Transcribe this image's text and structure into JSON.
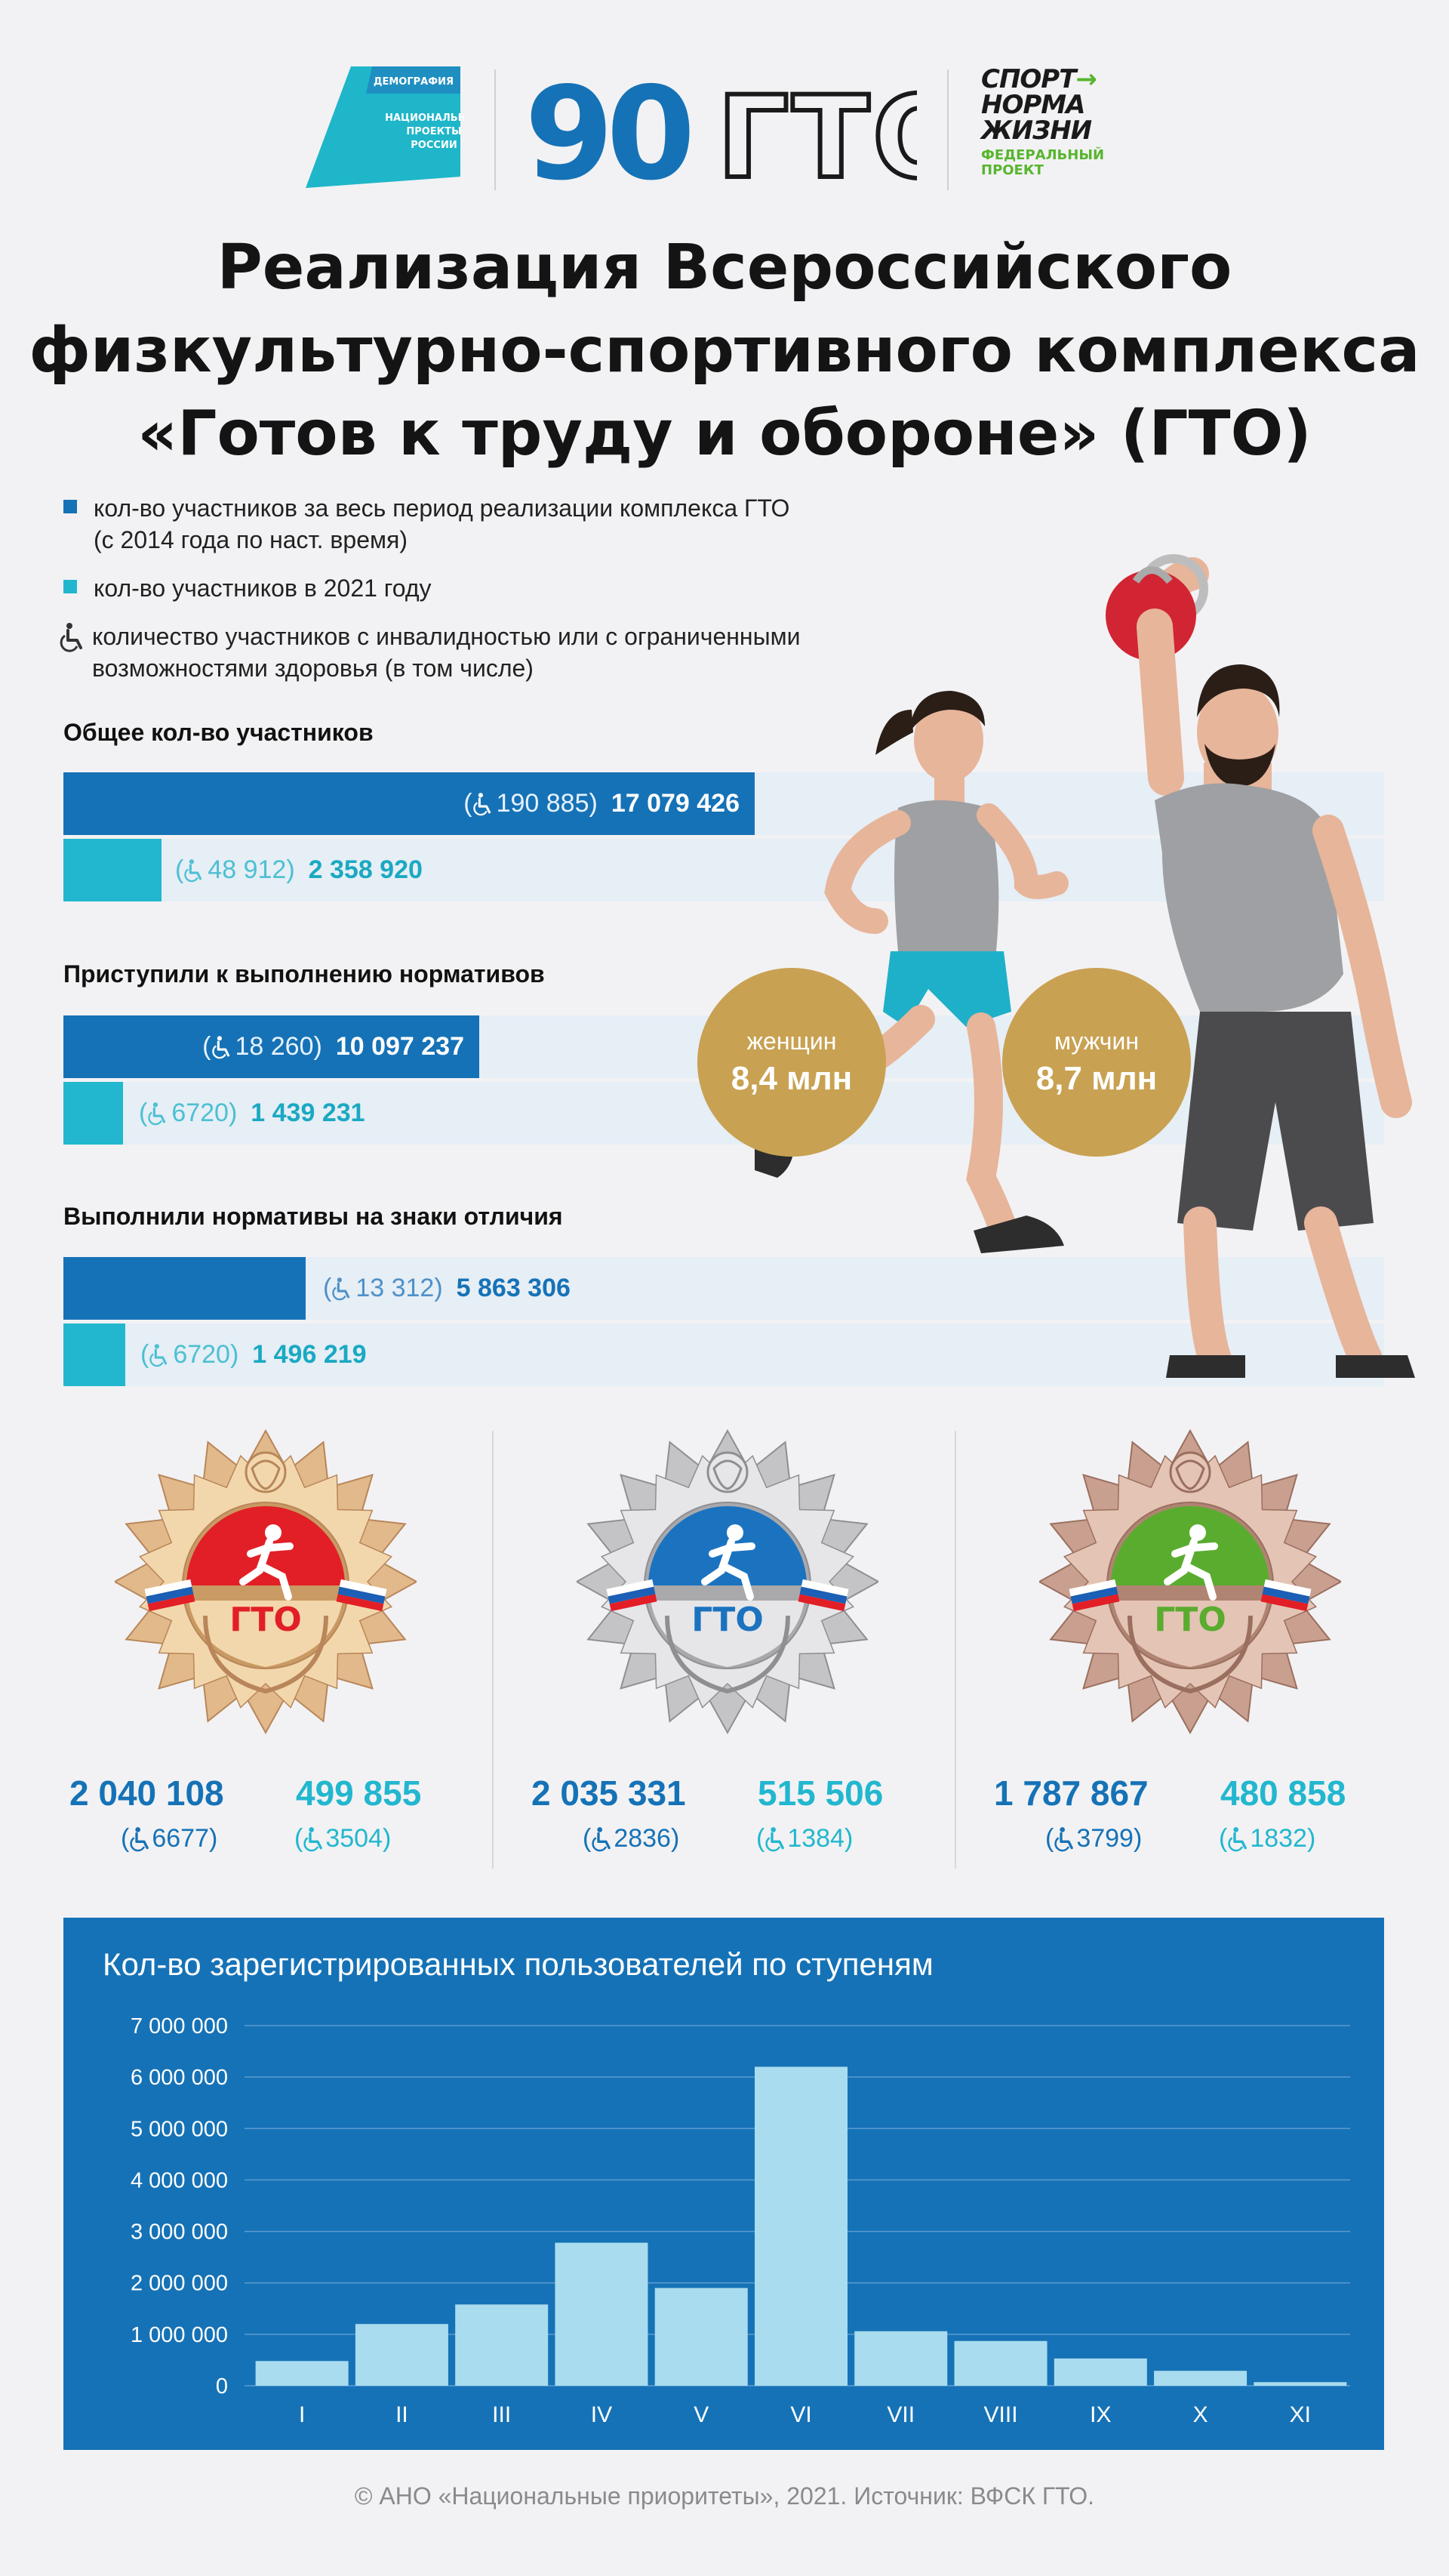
{
  "logos": {
    "demography": {
      "top": "ДЕМОГРАФИЯ",
      "bottom": [
        "НАЦИОНАЛЬНЫЕ",
        "ПРОЕКТЫ",
        "РОССИИ"
      ]
    },
    "gto90": {
      "number": "90",
      "text": "ГТО"
    },
    "sport": {
      "lines": [
        "СПОРТ",
        "НОРМА",
        "ЖИЗНИ"
      ],
      "fed": [
        "ФЕДЕРАЛЬНЫЙ",
        "ПРОЕКТ"
      ]
    }
  },
  "title": {
    "lines": [
      "Реализация Всероссийского",
      "физкультурно-спортивного комплекса",
      "«Готов к труду и обороне» (ГТО)"
    ]
  },
  "legend": {
    "total": [
      "кол-во участников за весь период реализации комплекса ГТО",
      "(с 2014 года по наст. время)"
    ],
    "year2021": "кол-во участников в 2021 году",
    "disabled": [
      "количество участников с инвалидностью или с ограниченными",
      "возможностями здоровья (в том числе)"
    ],
    "colors": {
      "dark": "#1672b6",
      "light": "#22b7cf"
    }
  },
  "sections": [
    {
      "title": "Общее кол-во участников",
      "total": {
        "value": "17 079 426",
        "disabled": "(♿190 885)",
        "disabled_num": "190 885",
        "share": 0.24
      },
      "year": {
        "value": "2 358 920",
        "disabled_num": "48 912",
        "share": 0.04
      }
    },
    {
      "title": "Приступили к выполнению нормативов",
      "total": {
        "value": "10 097 237",
        "disabled_num": "18 260",
        "share": 0.145
      },
      "year": {
        "value": "1 439 231",
        "disabled_num": "6720",
        "share": 0.02
      }
    },
    {
      "title": "Выполнили нормативы на знаки отличия",
      "total": {
        "value": "5 863 306",
        "disabled_num": "13 312",
        "share": 0.084
      },
      "year": {
        "value": "1 496 219",
        "disabled_num": "6720",
        "share": 0.021
      }
    }
  ],
  "gender": {
    "women": {
      "label": "женщин",
      "value": "8,4 млн"
    },
    "men": {
      "label": "мужчин",
      "value": "8,7 млн"
    },
    "color": "#c8a152"
  },
  "badges": [
    {
      "metal": "gold",
      "center_color": "#e21f26",
      "label": "ГТО",
      "total": "2 040 108",
      "year": "499 855",
      "total_dis": "6677",
      "year_dis": "3504"
    },
    {
      "metal": "silver",
      "center_color": "#1b73c0",
      "label": "ГТО",
      "total": "2 035 331",
      "year": "515 506",
      "total_dis": "2836",
      "year_dis": "1384"
    },
    {
      "metal": "bronze",
      "center_color": "#5aac2f",
      "label": "ГТО",
      "total": "1 787 867",
      "year": "480 858",
      "total_dis": "3799",
      "year_dis": "1832"
    }
  ],
  "chart_data": {
    "type": "bar",
    "title": "Кол-во зарегистрированных пользователей по ступеням",
    "categories": [
      "I",
      "II",
      "III",
      "IV",
      "V",
      "VI",
      "VII",
      "VIII",
      "IX",
      "X",
      "XI"
    ],
    "values": [
      480000,
      1200000,
      1580000,
      2780000,
      1900000,
      6200000,
      1060000,
      870000,
      530000,
      290000,
      70000
    ],
    "yticks": [
      "7 000 000",
      "6 000 000",
      "5 000 000",
      "4 000 000",
      "3 000 000",
      "2 000 000",
      "1 000 000",
      "0"
    ],
    "ylim": [
      0,
      7000000
    ],
    "bar_color": "#a9dcee",
    "background": "#1672b6"
  },
  "footer": "© АНО «Национальные приоритеты», 2021. Источник: ВФСК ГТО."
}
